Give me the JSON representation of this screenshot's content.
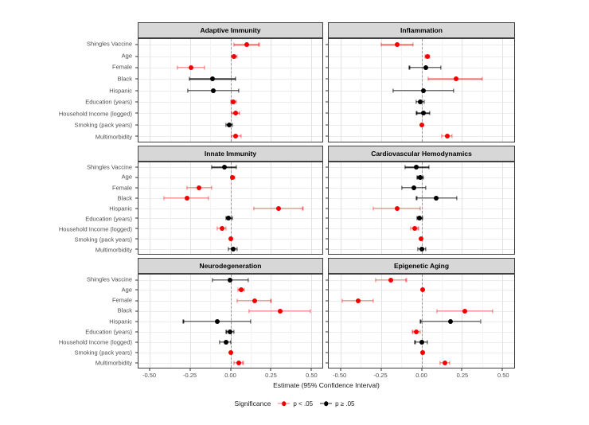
{
  "chart_data": {
    "type": "scatter",
    "subtype": "faceted-forest-plot",
    "xlabel": "Estimate (95% Confidence Interval)",
    "xlim": [
      -0.57,
      0.57
    ],
    "x_ticks": [
      -0.5,
      -0.25,
      0,
      0.25,
      0.5
    ],
    "x_tick_labels": [
      "-0.50",
      "-0.25",
      "0.00",
      "0.25",
      "0.50"
    ],
    "x_minor_ticks": [
      -0.375,
      -0.125,
      0.125,
      0.375
    ],
    "grid": true,
    "reference_line": {
      "x": 0,
      "style": "dashed"
    },
    "categories": [
      "Shingles Vaccine",
      "Age",
      "Female",
      "Black",
      "Hispanic",
      "Education (years)",
      "Household Income (logged)",
      "Smoking (pack years)",
      "Multimorbidity"
    ],
    "panels": [
      {
        "title": "Adaptive Immunity",
        "points": [
          {
            "estimate": 0.1,
            "lower": 0.02,
            "upper": 0.178,
            "significant": true
          },
          {
            "estimate": 0.021,
            "lower": 0.005,
            "upper": 0.041,
            "significant": true
          },
          {
            "estimate": -0.243,
            "lower": -0.33,
            "upper": -0.163,
            "significant": true
          },
          {
            "estimate": -0.112,
            "lower": -0.256,
            "upper": 0.03,
            "significant": false
          },
          {
            "estimate": -0.107,
            "lower": -0.264,
            "upper": 0.05,
            "significant": false
          },
          {
            "estimate": 0.016,
            "lower": 0.001,
            "upper": 0.036,
            "significant": true
          },
          {
            "estimate": 0.03,
            "lower": 0.005,
            "upper": 0.058,
            "significant": true
          },
          {
            "estimate": -0.008,
            "lower": -0.028,
            "upper": 0.013,
            "significant": false
          },
          {
            "estimate": 0.033,
            "lower": 0.005,
            "upper": 0.066,
            "significant": true
          }
        ]
      },
      {
        "title": "Inflammation",
        "points": [
          {
            "estimate": -0.149,
            "lower": -0.248,
            "upper": -0.05,
            "significant": true
          },
          {
            "estimate": 0.036,
            "lower": 0.021,
            "upper": 0.052,
            "significant": true
          },
          {
            "estimate": 0.025,
            "lower": -0.074,
            "upper": 0.12,
            "significant": false
          },
          {
            "estimate": 0.211,
            "lower": 0.041,
            "upper": 0.376,
            "significant": true
          },
          {
            "estimate": 0.013,
            "lower": -0.173,
            "upper": 0.198,
            "significant": false
          },
          {
            "estimate": -0.008,
            "lower": -0.033,
            "upper": 0.016,
            "significant": false
          },
          {
            "estimate": 0.012,
            "lower": -0.03,
            "upper": 0.053,
            "significant": false
          },
          {
            "estimate": 0.004,
            "lower": 0.001,
            "upper": 0.008,
            "significant": true
          },
          {
            "estimate": 0.157,
            "lower": 0.125,
            "upper": 0.188,
            "significant": true
          }
        ]
      },
      {
        "title": "Innate Immunity",
        "points": [
          {
            "estimate": -0.038,
            "lower": -0.115,
            "upper": 0.038,
            "significant": false
          },
          {
            "estimate": 0.012,
            "lower": 0.002,
            "upper": 0.025,
            "significant": true
          },
          {
            "estimate": -0.193,
            "lower": -0.269,
            "upper": -0.115,
            "significant": true
          },
          {
            "estimate": -0.272,
            "lower": -0.412,
            "upper": -0.135,
            "significant": true
          },
          {
            "estimate": 0.297,
            "lower": 0.144,
            "upper": 0.45,
            "significant": true
          },
          {
            "estimate": -0.012,
            "lower": -0.028,
            "upper": 0.01,
            "significant": false
          },
          {
            "estimate": -0.054,
            "lower": -0.082,
            "upper": -0.028,
            "significant": true
          },
          {
            "estimate": 0.004,
            "lower": 0.001,
            "upper": 0.008,
            "significant": true
          },
          {
            "estimate": 0.016,
            "lower": -0.013,
            "upper": 0.042,
            "significant": false
          }
        ]
      },
      {
        "title": "Cardiovascular Hemodynamics",
        "points": [
          {
            "estimate": -0.033,
            "lower": -0.102,
            "upper": 0.046,
            "significant": false
          },
          {
            "estimate": -0.008,
            "lower": -0.025,
            "upper": 0.011,
            "significant": false
          },
          {
            "estimate": -0.046,
            "lower": -0.119,
            "upper": 0.025,
            "significant": false
          },
          {
            "estimate": 0.091,
            "lower": -0.03,
            "upper": 0.219,
            "significant": false
          },
          {
            "estimate": -0.152,
            "lower": -0.297,
            "upper": -0.008,
            "significant": true
          },
          {
            "estimate": -0.011,
            "lower": -0.028,
            "upper": 0.008,
            "significant": false
          },
          {
            "estimate": -0.041,
            "lower": -0.068,
            "upper": -0.02,
            "significant": true
          },
          {
            "estimate": -0.004,
            "lower": -0.009,
            "upper": -0.001,
            "significant": true
          },
          {
            "estimate": 0.003,
            "lower": -0.021,
            "upper": 0.028,
            "significant": false
          }
        ]
      },
      {
        "title": "Neurodegeneration",
        "points": [
          {
            "estimate": -0.003,
            "lower": -0.11,
            "upper": 0.112,
            "significant": false
          },
          {
            "estimate": 0.066,
            "lower": 0.048,
            "upper": 0.086,
            "significant": true
          },
          {
            "estimate": 0.153,
            "lower": 0.042,
            "upper": 0.252,
            "significant": true
          },
          {
            "estimate": 0.308,
            "lower": 0.115,
            "upper": 0.498,
            "significant": true
          },
          {
            "estimate": -0.083,
            "lower": -0.292,
            "upper": 0.127,
            "significant": false
          },
          {
            "estimate": -0.003,
            "lower": -0.025,
            "upper": 0.02,
            "significant": false
          },
          {
            "estimate": -0.028,
            "lower": -0.066,
            "upper": 0.003,
            "significant": false
          },
          {
            "estimate": 0.004,
            "lower": 0.001,
            "upper": 0.008,
            "significant": true
          },
          {
            "estimate": 0.05,
            "lower": 0.021,
            "upper": 0.079,
            "significant": true
          }
        ]
      },
      {
        "title": "Epigenetic Aging",
        "points": [
          {
            "estimate": -0.19,
            "lower": -0.284,
            "upper": -0.094,
            "significant": true
          },
          {
            "estimate": 0.008,
            "lower": 0.002,
            "upper": 0.015,
            "significant": true
          },
          {
            "estimate": -0.39,
            "lower": -0.487,
            "upper": -0.297,
            "significant": true
          },
          {
            "estimate": 0.267,
            "lower": 0.096,
            "upper": 0.437,
            "significant": true
          },
          {
            "estimate": 0.178,
            "lower": -0.005,
            "upper": 0.363,
            "significant": false
          },
          {
            "estimate": -0.032,
            "lower": -0.054,
            "upper": -0.006,
            "significant": true
          },
          {
            "estimate": 0.0,
            "lower": -0.04,
            "upper": 0.037,
            "significant": false
          },
          {
            "estimate": 0.008,
            "lower": 0.002,
            "upper": 0.015,
            "significant": true
          },
          {
            "estimate": 0.145,
            "lower": 0.115,
            "upper": 0.173,
            "significant": true
          }
        ]
      }
    ],
    "legend": {
      "title": "Significance",
      "position": "bottom",
      "items": [
        {
          "label": "p < .05",
          "color": "#f20000"
        },
        {
          "label": "p ≥ .05",
          "color": "#000000"
        }
      ]
    }
  },
  "colors": {
    "significant": "#f20000",
    "not_significant": "#000000",
    "strip_background": "#d7d7d7",
    "panel_border": "#404040",
    "grid_major": "#e2e2e2",
    "reference_line": "#9a9a9a",
    "axis_text": "#4d4d4d"
  }
}
